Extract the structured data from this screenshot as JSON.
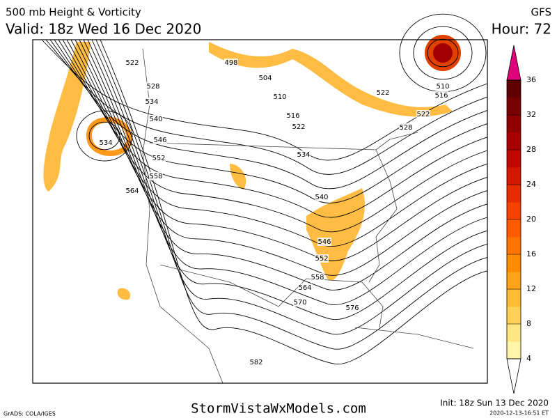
{
  "header": {
    "title": "500 mb Height & Vorticity",
    "valid": "Valid: 18z Wed 16 Dec 2020",
    "model": "GFS",
    "hour": "Hour: 72"
  },
  "map": {
    "contour_labels": [
      "522",
      "528",
      "534",
      "540",
      "546",
      "552",
      "558",
      "564",
      "534",
      "498",
      "504",
      "510",
      "516",
      "522",
      "534",
      "540",
      "546",
      "552",
      "558",
      "564",
      "570",
      "576",
      "582",
      "522",
      "510",
      "516",
      "522",
      "528"
    ]
  },
  "colorbar": {
    "range": [
      4,
      36
    ],
    "ticks": [
      4,
      8,
      12,
      16,
      20,
      24,
      28,
      32,
      36
    ],
    "colors": [
      "#fff5a8",
      "#ffe680",
      "#ffd158",
      "#ffbb33",
      "#ffa31a",
      "#ff8c00",
      "#ff7400",
      "#ff5a00",
      "#f54200",
      "#e62c00",
      "#d41800",
      "#c00800",
      "#a80000",
      "#900000",
      "#780000",
      "#600000"
    ],
    "top_color": "#e0007a"
  },
  "footer": {
    "software": "GrADS: COLA/IGES",
    "site": "StormVistaWxModels.com",
    "init": "Init: 18z Sun 13 Dec 2020",
    "timestamp": "2020-12-13-16:51 ET"
  }
}
